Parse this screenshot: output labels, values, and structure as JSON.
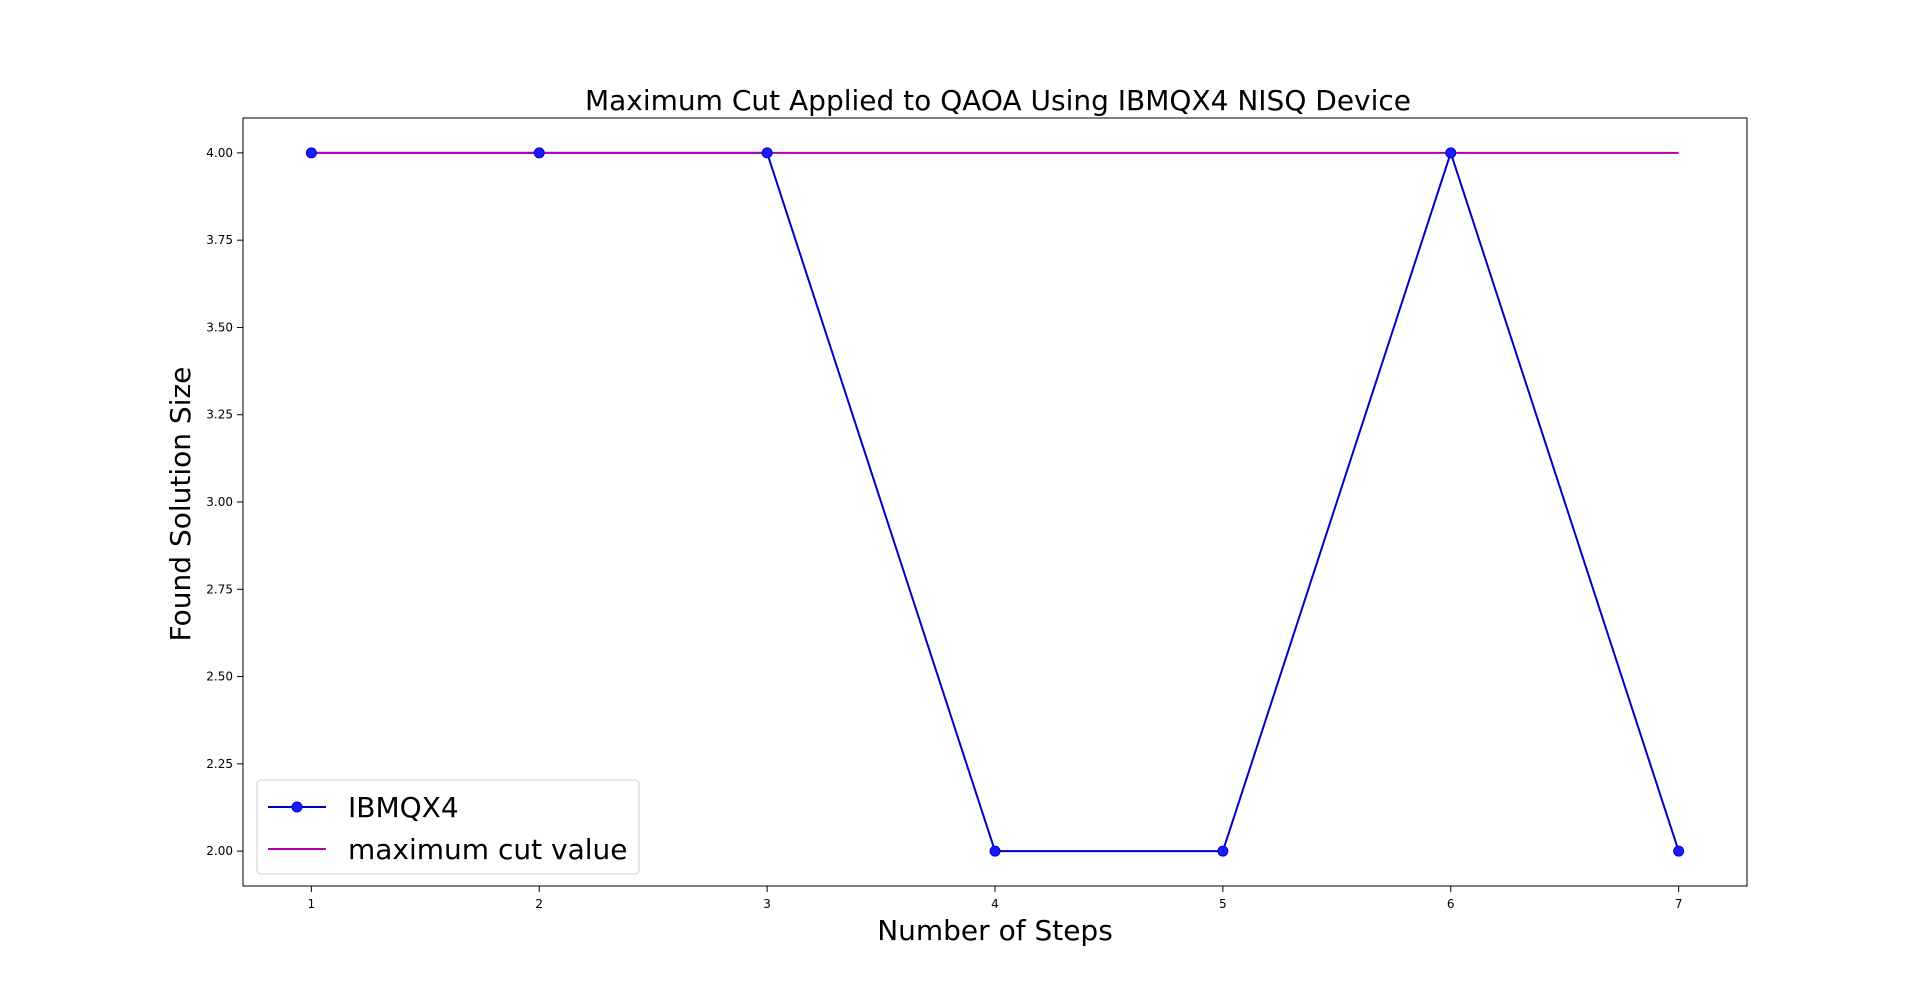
{
  "chart_data": {
    "type": "line",
    "title": "Maximum Cut Applied to QAOA Using IBMQX4 NISQ Device",
    "xlabel": "Number of Steps",
    "ylabel": "Found Solution Size",
    "x": [
      1,
      2,
      3,
      4,
      5,
      6,
      7
    ],
    "x_tick_labels": [
      "1",
      "2",
      "3",
      "4",
      "5",
      "6",
      "7"
    ],
    "y_tick_labels": [
      "2.00",
      "2.25",
      "2.50",
      "2.75",
      "3.00",
      "3.25",
      "3.50",
      "3.75",
      "4.00"
    ],
    "y_ticks": [
      2.0,
      2.25,
      2.5,
      2.75,
      3.0,
      3.25,
      3.5,
      3.75,
      4.0
    ],
    "xlim": [
      0.7,
      7.3
    ],
    "ylim": [
      1.9,
      4.1
    ],
    "grid": false,
    "legend_position": "lower-left",
    "series": [
      {
        "name": "IBMQX4",
        "values": [
          4,
          4,
          4,
          2,
          2,
          4,
          2
        ],
        "color": "#0000cc",
        "marker": "circle",
        "marker_color": "#1a1aff"
      },
      {
        "name": "maximum cut value",
        "values": [
          4,
          4,
          4,
          4,
          4,
          4,
          4
        ],
        "color": "#b300b3",
        "marker": "none"
      }
    ]
  }
}
